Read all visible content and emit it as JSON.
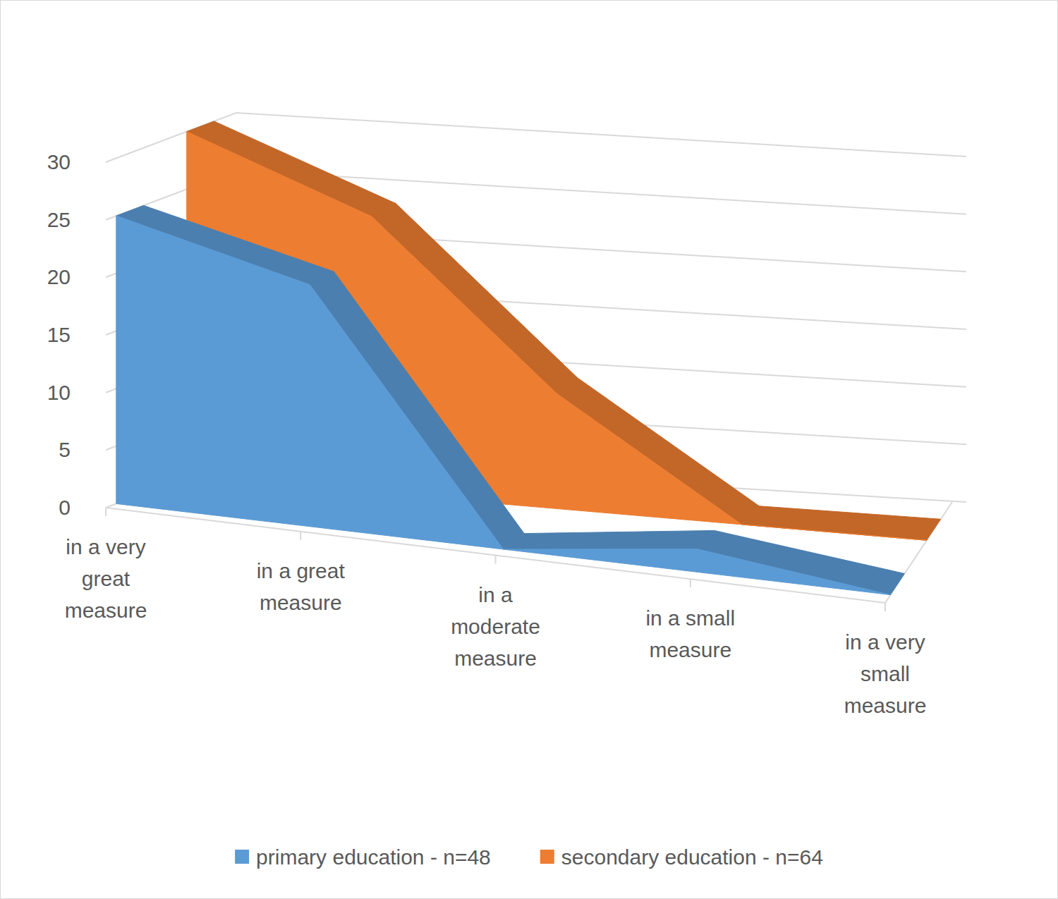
{
  "chart_data": {
    "type": "area",
    "categories": [
      "in a very great measure",
      "in a great measure",
      "in a moderate measure",
      "in a small measure",
      "in a very small measure"
    ],
    "series": [
      {
        "name": "primary education - n=48",
        "color": "#5b9bd5",
        "values": [
          25,
          21,
          0,
          2,
          0
        ]
      },
      {
        "name": "secondary education - n=64",
        "color": "#ed7d31",
        "values": [
          30,
          24,
          10,
          0,
          0
        ]
      }
    ],
    "ylim": [
      0,
      30
    ],
    "yticks": [
      0,
      5,
      10,
      15,
      20,
      25,
      30
    ],
    "grid": true,
    "legend": "bottom"
  }
}
